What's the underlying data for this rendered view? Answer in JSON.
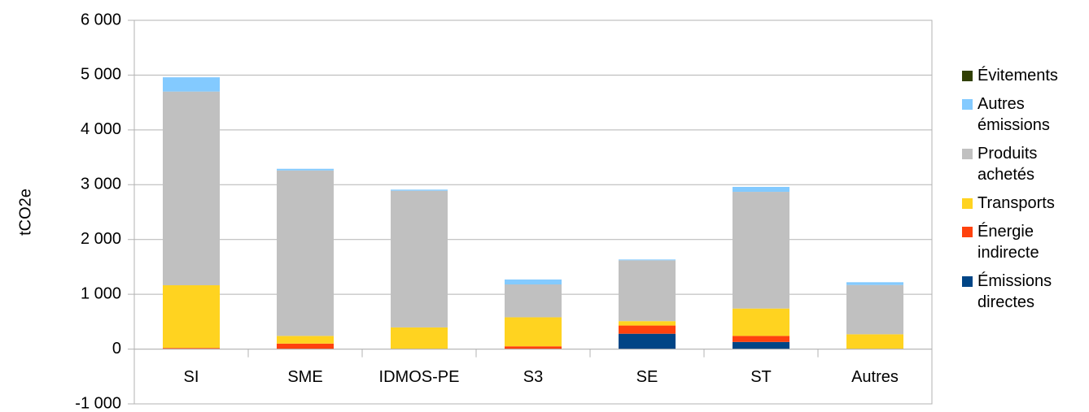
{
  "chart_data": {
    "type": "stacked_bar",
    "y_label": "tCO2e",
    "categories": [
      "SI",
      "SME",
      "IDMOS-PE",
      "S3",
      "SE",
      "ST",
      "Autres"
    ],
    "series": [
      {
        "name": "Émissions directes",
        "color": "#004586",
        "values": [
          0,
          0,
          0,
          0,
          280,
          130,
          0
        ]
      },
      {
        "name": "Énergie indirecte",
        "color": "#ff420e",
        "values": [
          20,
          100,
          5,
          50,
          150,
          110,
          5
        ]
      },
      {
        "name": "Transports",
        "color": "#ffd320",
        "values": [
          1145,
          140,
          390,
          530,
          80,
          500,
          265
        ]
      },
      {
        "name": "Produits achetés",
        "color": "#c0c0c0",
        "values": [
          3535,
          3020,
          2495,
          600,
          1110,
          2130,
          900
        ]
      },
      {
        "name": "Autres émissions",
        "color": "#83caff",
        "values": [
          260,
          30,
          20,
          90,
          15,
          90,
          50
        ]
      },
      {
        "name": "Évitements",
        "color": "#314004",
        "values": [
          0,
          0,
          0,
          0,
          0,
          0,
          0
        ]
      }
    ],
    "ylim": [
      -1000,
      6000
    ],
    "yticks": [
      {
        "value": -1000,
        "label": "-1 000"
      },
      0,
      {
        "value": 1000,
        "label": "1 000"
      },
      {
        "value": 2000,
        "label": "2 000"
      },
      {
        "value": 3000,
        "label": "3 000"
      },
      {
        "value": 4000,
        "label": "4 000"
      },
      {
        "value": 5000,
        "label": "5 000"
      },
      {
        "value": 6000,
        "label": "6 000"
      }
    ],
    "grid": true,
    "legend": "right"
  }
}
